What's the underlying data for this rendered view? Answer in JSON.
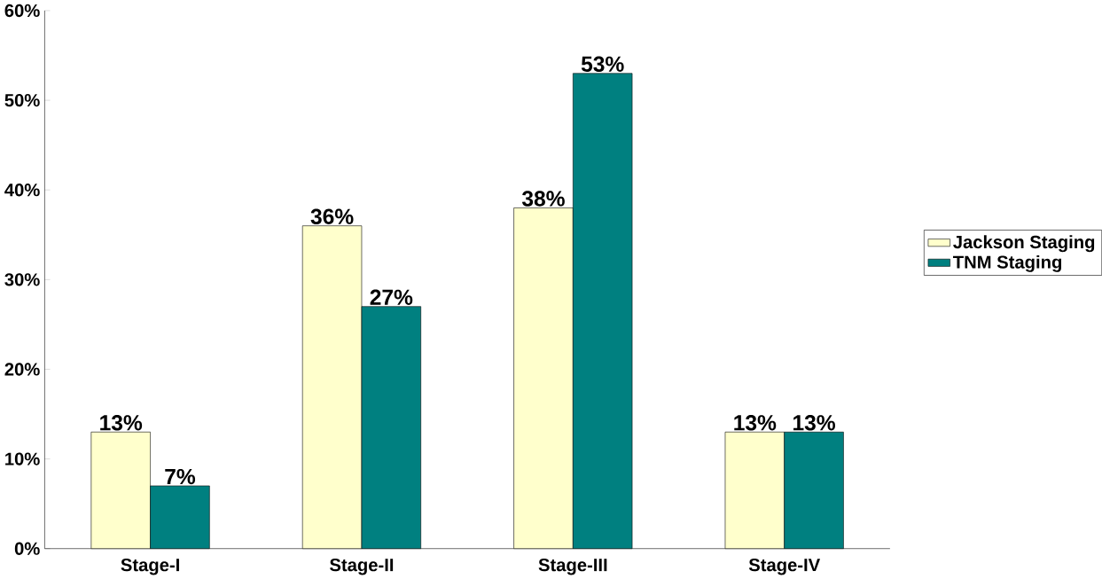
{
  "chart_data": {
    "type": "bar",
    "categories": [
      "Stage-I",
      "Stage-II",
      "Stage-III",
      "Stage-IV"
    ],
    "series": [
      {
        "name": "Jackson Staging",
        "color": "#ffffcc",
        "values": [
          13,
          36,
          38,
          13
        ],
        "value_labels": [
          "13%",
          "36%",
          "38%",
          "13%"
        ]
      },
      {
        "name": "TNM Staging",
        "color": "#008080",
        "values": [
          7,
          27,
          53,
          13
        ],
        "value_labels": [
          "7%",
          "27%",
          "53%",
          "13%"
        ]
      }
    ],
    "ylim": [
      0,
      60
    ],
    "yticks": [
      {
        "value": 0,
        "label": "0%"
      },
      {
        "value": 10,
        "label": "10%"
      },
      {
        "value": 20,
        "label": "20%"
      },
      {
        "value": 30,
        "label": "30%"
      },
      {
        "value": 40,
        "label": "40%"
      },
      {
        "value": 50,
        "label": "50%"
      },
      {
        "value": 60,
        "label": "60%"
      }
    ],
    "legend": "right"
  }
}
